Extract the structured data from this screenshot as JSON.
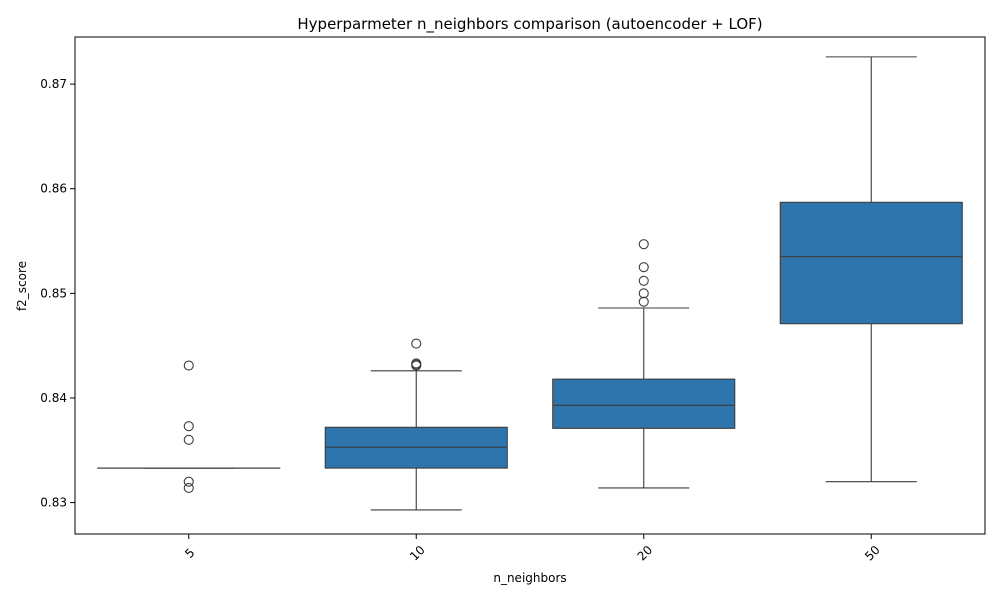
{
  "chart_data": {
    "type": "boxplot",
    "title": "Hyperparmeter n_neighbors comparison (autoencoder + LOF)",
    "xlabel": "n_neighbors",
    "ylabel": "f2_score",
    "categories": [
      "5",
      "10",
      "20",
      "50"
    ],
    "ylim": [
      0.827,
      0.8745
    ],
    "yticks": [
      0.83,
      0.84,
      0.85,
      0.86,
      0.87
    ],
    "ytick_labels": [
      "0.83",
      "0.84",
      "0.85",
      "0.86",
      "0.87"
    ],
    "grid": false,
    "color": "#2e75ad",
    "boxes": [
      {
        "category": "5",
        "q1": 0.8333,
        "median": 0.8333,
        "q3": 0.8333,
        "whisker_low": 0.8333,
        "whisker_high": 0.8333,
        "outliers": [
          0.8431,
          0.8373,
          0.836,
          0.832,
          0.8314
        ]
      },
      {
        "category": "10",
        "q1": 0.8333,
        "median": 0.8353,
        "q3": 0.8372,
        "whisker_low": 0.8293,
        "whisker_high": 0.8426,
        "outliers": [
          0.8452,
          0.8433,
          0.8432,
          0.8431
        ]
      },
      {
        "category": "20",
        "q1": 0.8371,
        "median": 0.8393,
        "q3": 0.8418,
        "whisker_low": 0.8314,
        "whisker_high": 0.8486,
        "outliers": [
          0.8547,
          0.8525,
          0.8512,
          0.85,
          0.8492
        ]
      },
      {
        "category": "50",
        "q1": 0.8471,
        "median": 0.8535,
        "q3": 0.8587,
        "whisker_low": 0.832,
        "whisker_high": 0.8726,
        "outliers": []
      }
    ]
  }
}
